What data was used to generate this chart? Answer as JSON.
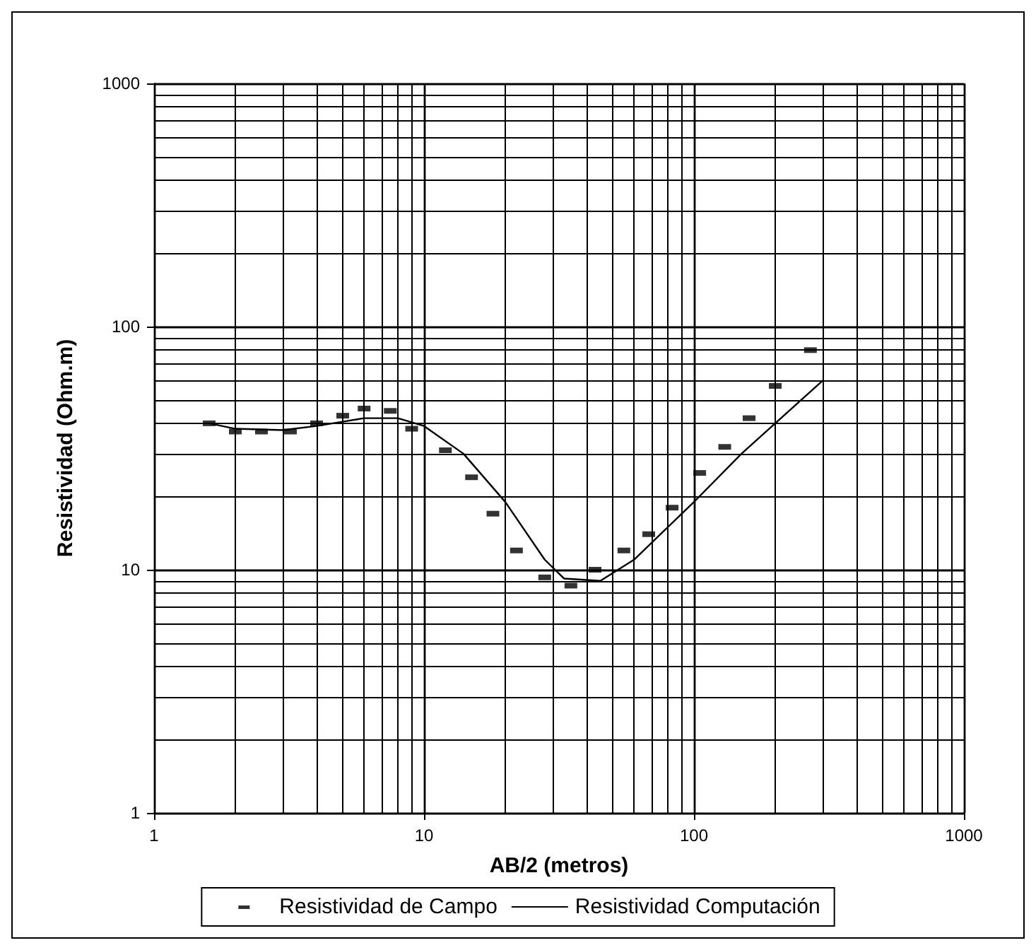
{
  "chart_data": {
    "type": "scatter",
    "xlabel": "AB/2 (metros)",
    "ylabel": "Resistividad (Ohm.m)",
    "log": "xy",
    "grid": true,
    "legend": "bottom",
    "marker": "square",
    "line_style": "solid",
    "xlim": [
      1,
      1000
    ],
    "ylim": [
      1,
      1000
    ],
    "xticks": [
      1,
      10,
      100,
      1000
    ],
    "yticks": [
      1,
      10,
      100,
      1000
    ],
    "series": [
      {
        "name": "Resistividad de Campo",
        "color": "#000000",
        "x": [
          1.6,
          2,
          2.5,
          3.2,
          4,
          5,
          6,
          7.5,
          9,
          12,
          15,
          18,
          22,
          28,
          35,
          43,
          55,
          68,
          83,
          105,
          130,
          160,
          200,
          270
        ],
        "values": [
          40,
          37,
          37,
          37,
          40,
          43,
          46,
          45,
          38,
          31,
          24,
          17,
          12,
          9.3,
          8.6,
          10,
          12,
          14,
          18,
          25,
          32,
          42,
          57,
          80
        ]
      },
      {
        "name": "Resistividad Computación",
        "type": "line",
        "color": "#000000",
        "marker": "none",
        "x": [
          1.6,
          2,
          3,
          4,
          6,
          8,
          10,
          14,
          20,
          28,
          33,
          45,
          60,
          100,
          150,
          200,
          300
        ],
        "values": [
          40,
          38,
          37.5,
          39,
          42,
          42,
          39,
          30,
          19,
          11,
          9.2,
          9,
          11,
          19,
          30,
          40,
          60
        ]
      }
    ]
  }
}
